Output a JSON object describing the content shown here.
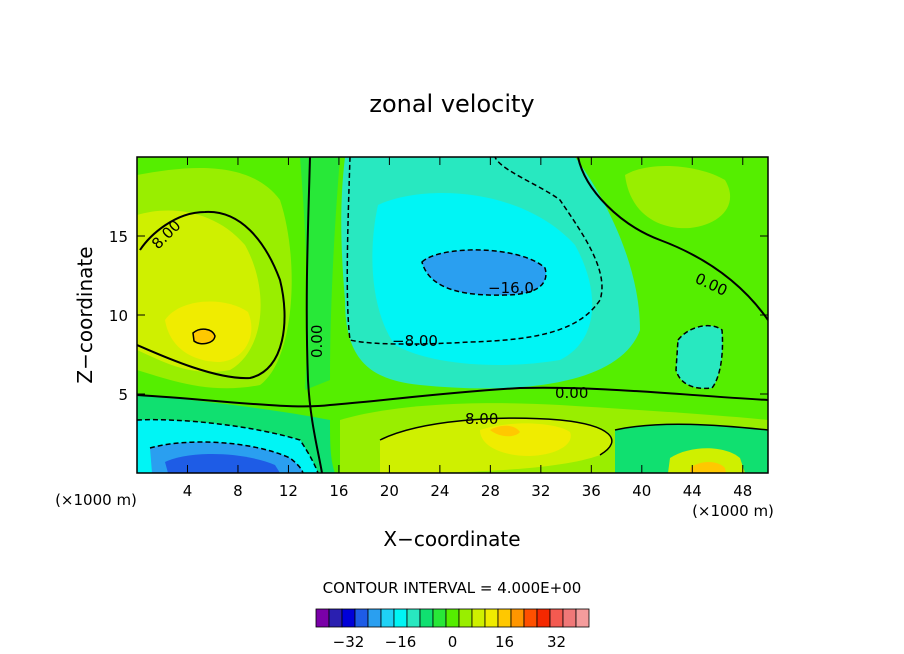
{
  "chart_data": {
    "type": "heatmap",
    "subtype": "filled-contour",
    "title": "zonal velocity",
    "xlabel": "X−coordinate",
    "ylabel": "Z−coordinate",
    "x_unit_left": "(×1000 m)",
    "x_unit_right": "(×1000 m)",
    "xlim": [
      0,
      50
    ],
    "ylim": [
      0,
      20
    ],
    "xticks": [
      "4",
      "8",
      "12",
      "16",
      "20",
      "24",
      "28",
      "32",
      "36",
      "40",
      "44",
      "48"
    ],
    "yticks": [
      "5",
      "10",
      "15"
    ],
    "contour_interval_text": "CONTOUR INTERVAL = 4.000E+00",
    "contour_labels": [
      "8.00",
      "0.00",
      "−8.00",
      "−16.0",
      "0.00",
      "0.00",
      "8.00"
    ],
    "colorbar": {
      "ticks": [
        "−32",
        "−16",
        "0",
        "16",
        "32"
      ],
      "colors": [
        "#7a00a8",
        "#2a1fb0",
        "#0000d8",
        "#1e5ce6",
        "#2a9ff0",
        "#1fd2f5",
        "#00f5f5",
        "#28e8c0",
        "#10e070",
        "#28e838",
        "#55ee00",
        "#99ee00",
        "#cff000",
        "#f0ec00",
        "#ffc800",
        "#ff9600",
        "#ff5000",
        "#f52800",
        "#f45a50",
        "#f07878",
        "#f49c9c"
      ]
    },
    "fields": [
      {
        "name": "lower-left jet core",
        "x": 6,
        "z": 0.5,
        "value": -30
      },
      {
        "name": "upper-left positive cell",
        "x": 5,
        "z": 9,
        "value": 16
      },
      {
        "name": "central negative cell",
        "x": 28,
        "z": 12,
        "value": -18
      },
      {
        "name": "lower positive band",
        "x": 28,
        "z": 3,
        "value": 10
      },
      {
        "name": "right negative pocket",
        "x": 45,
        "z": 7,
        "value": -8
      },
      {
        "name": "lower-right positive cell",
        "x": 45,
        "z": 0.5,
        "value": 14
      }
    ]
  }
}
